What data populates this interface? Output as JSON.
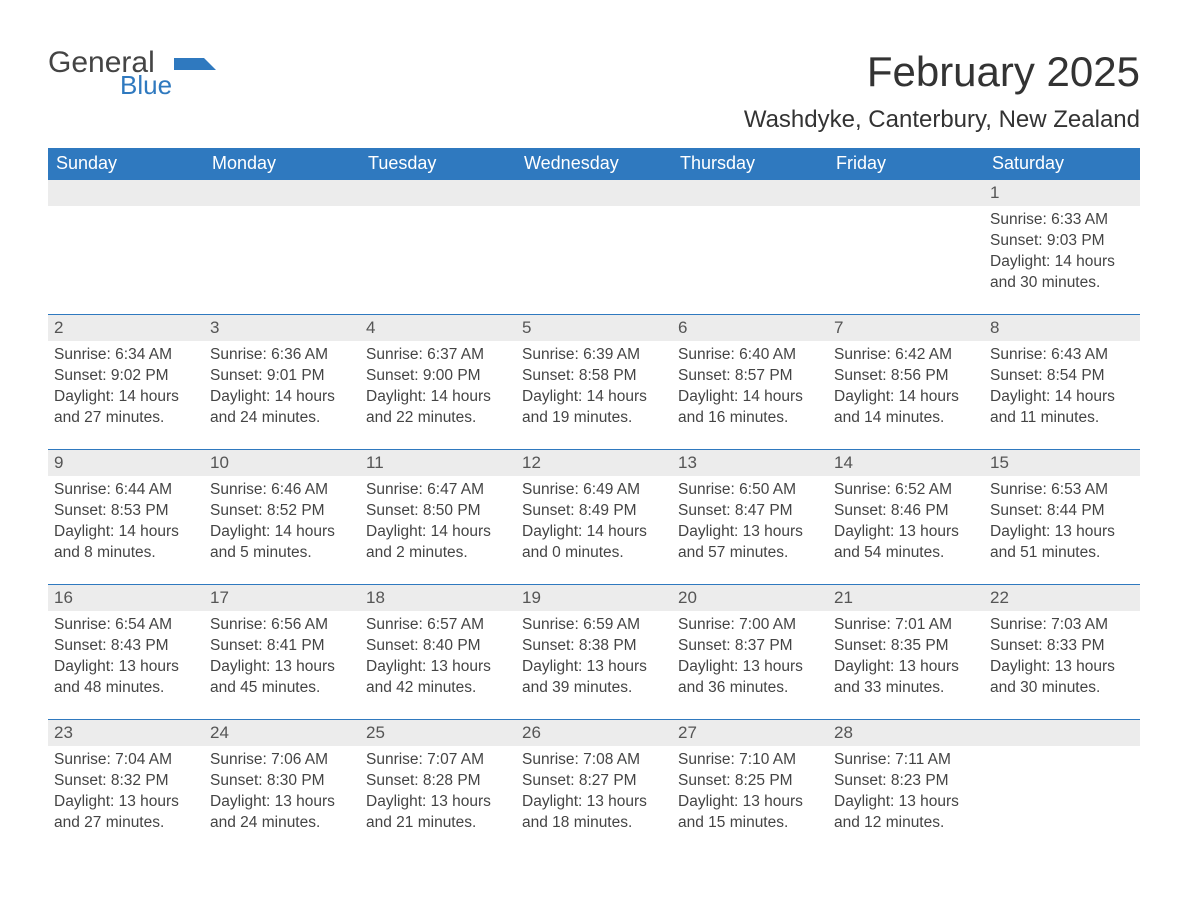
{
  "logo": {
    "general": "General",
    "blue": "Blue",
    "flag_color": "#2f79bf"
  },
  "title": "February 2025",
  "location": "Washdyke, Canterbury, New Zealand",
  "weekdays": [
    "Sunday",
    "Monday",
    "Tuesday",
    "Wednesday",
    "Thursday",
    "Friday",
    "Saturday"
  ],
  "colors": {
    "header_bg": "#2f79bf",
    "header_text": "#ffffff",
    "strip_bg": "#ececec",
    "row_border": "#2f79bf",
    "text": "#444444"
  },
  "weeks": [
    {
      "cells": [
        {
          "date": "",
          "sunrise": "",
          "sunset": "",
          "daylight": ""
        },
        {
          "date": "",
          "sunrise": "",
          "sunset": "",
          "daylight": ""
        },
        {
          "date": "",
          "sunrise": "",
          "sunset": "",
          "daylight": ""
        },
        {
          "date": "",
          "sunrise": "",
          "sunset": "",
          "daylight": ""
        },
        {
          "date": "",
          "sunrise": "",
          "sunset": "",
          "daylight": ""
        },
        {
          "date": "",
          "sunrise": "",
          "sunset": "",
          "daylight": ""
        },
        {
          "date": "1",
          "sunrise": "Sunrise: 6:33 AM",
          "sunset": "Sunset: 9:03 PM",
          "daylight": "Daylight: 14 hours and 30 minutes."
        }
      ]
    },
    {
      "cells": [
        {
          "date": "2",
          "sunrise": "Sunrise: 6:34 AM",
          "sunset": "Sunset: 9:02 PM",
          "daylight": "Daylight: 14 hours and 27 minutes."
        },
        {
          "date": "3",
          "sunrise": "Sunrise: 6:36 AM",
          "sunset": "Sunset: 9:01 PM",
          "daylight": "Daylight: 14 hours and 24 minutes."
        },
        {
          "date": "4",
          "sunrise": "Sunrise: 6:37 AM",
          "sunset": "Sunset: 9:00 PM",
          "daylight": "Daylight: 14 hours and 22 minutes."
        },
        {
          "date": "5",
          "sunrise": "Sunrise: 6:39 AM",
          "sunset": "Sunset: 8:58 PM",
          "daylight": "Daylight: 14 hours and 19 minutes."
        },
        {
          "date": "6",
          "sunrise": "Sunrise: 6:40 AM",
          "sunset": "Sunset: 8:57 PM",
          "daylight": "Daylight: 14 hours and 16 minutes."
        },
        {
          "date": "7",
          "sunrise": "Sunrise: 6:42 AM",
          "sunset": "Sunset: 8:56 PM",
          "daylight": "Daylight: 14 hours and 14 minutes."
        },
        {
          "date": "8",
          "sunrise": "Sunrise: 6:43 AM",
          "sunset": "Sunset: 8:54 PM",
          "daylight": "Daylight: 14 hours and 11 minutes."
        }
      ]
    },
    {
      "cells": [
        {
          "date": "9",
          "sunrise": "Sunrise: 6:44 AM",
          "sunset": "Sunset: 8:53 PM",
          "daylight": "Daylight: 14 hours and 8 minutes."
        },
        {
          "date": "10",
          "sunrise": "Sunrise: 6:46 AM",
          "sunset": "Sunset: 8:52 PM",
          "daylight": "Daylight: 14 hours and 5 minutes."
        },
        {
          "date": "11",
          "sunrise": "Sunrise: 6:47 AM",
          "sunset": "Sunset: 8:50 PM",
          "daylight": "Daylight: 14 hours and 2 minutes."
        },
        {
          "date": "12",
          "sunrise": "Sunrise: 6:49 AM",
          "sunset": "Sunset: 8:49 PM",
          "daylight": "Daylight: 14 hours and 0 minutes."
        },
        {
          "date": "13",
          "sunrise": "Sunrise: 6:50 AM",
          "sunset": "Sunset: 8:47 PM",
          "daylight": "Daylight: 13 hours and 57 minutes."
        },
        {
          "date": "14",
          "sunrise": "Sunrise: 6:52 AM",
          "sunset": "Sunset: 8:46 PM",
          "daylight": "Daylight: 13 hours and 54 minutes."
        },
        {
          "date": "15",
          "sunrise": "Sunrise: 6:53 AM",
          "sunset": "Sunset: 8:44 PM",
          "daylight": "Daylight: 13 hours and 51 minutes."
        }
      ]
    },
    {
      "cells": [
        {
          "date": "16",
          "sunrise": "Sunrise: 6:54 AM",
          "sunset": "Sunset: 8:43 PM",
          "daylight": "Daylight: 13 hours and 48 minutes."
        },
        {
          "date": "17",
          "sunrise": "Sunrise: 6:56 AM",
          "sunset": "Sunset: 8:41 PM",
          "daylight": "Daylight: 13 hours and 45 minutes."
        },
        {
          "date": "18",
          "sunrise": "Sunrise: 6:57 AM",
          "sunset": "Sunset: 8:40 PM",
          "daylight": "Daylight: 13 hours and 42 minutes."
        },
        {
          "date": "19",
          "sunrise": "Sunrise: 6:59 AM",
          "sunset": "Sunset: 8:38 PM",
          "daylight": "Daylight: 13 hours and 39 minutes."
        },
        {
          "date": "20",
          "sunrise": "Sunrise: 7:00 AM",
          "sunset": "Sunset: 8:37 PM",
          "daylight": "Daylight: 13 hours and 36 minutes."
        },
        {
          "date": "21",
          "sunrise": "Sunrise: 7:01 AM",
          "sunset": "Sunset: 8:35 PM",
          "daylight": "Daylight: 13 hours and 33 minutes."
        },
        {
          "date": "22",
          "sunrise": "Sunrise: 7:03 AM",
          "sunset": "Sunset: 8:33 PM",
          "daylight": "Daylight: 13 hours and 30 minutes."
        }
      ]
    },
    {
      "cells": [
        {
          "date": "23",
          "sunrise": "Sunrise: 7:04 AM",
          "sunset": "Sunset: 8:32 PM",
          "daylight": "Daylight: 13 hours and 27 minutes."
        },
        {
          "date": "24",
          "sunrise": "Sunrise: 7:06 AM",
          "sunset": "Sunset: 8:30 PM",
          "daylight": "Daylight: 13 hours and 24 minutes."
        },
        {
          "date": "25",
          "sunrise": "Sunrise: 7:07 AM",
          "sunset": "Sunset: 8:28 PM",
          "daylight": "Daylight: 13 hours and 21 minutes."
        },
        {
          "date": "26",
          "sunrise": "Sunrise: 7:08 AM",
          "sunset": "Sunset: 8:27 PM",
          "daylight": "Daylight: 13 hours and 18 minutes."
        },
        {
          "date": "27",
          "sunrise": "Sunrise: 7:10 AM",
          "sunset": "Sunset: 8:25 PM",
          "daylight": "Daylight: 13 hours and 15 minutes."
        },
        {
          "date": "28",
          "sunrise": "Sunrise: 7:11 AM",
          "sunset": "Sunset: 8:23 PM",
          "daylight": "Daylight: 13 hours and 12 minutes."
        },
        {
          "date": "",
          "sunrise": "",
          "sunset": "",
          "daylight": ""
        }
      ]
    }
  ]
}
